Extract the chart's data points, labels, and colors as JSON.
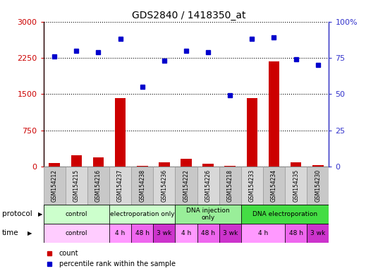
{
  "title": "GDS2840 / 1418350_at",
  "samples": [
    "GSM154212",
    "GSM154215",
    "GSM154216",
    "GSM154237",
    "GSM154238",
    "GSM154236",
    "GSM154222",
    "GSM154226",
    "GSM154218",
    "GSM154233",
    "GSM154234",
    "GSM154235",
    "GSM154230"
  ],
  "counts": [
    80,
    230,
    190,
    1420,
    20,
    90,
    160,
    55,
    15,
    1420,
    2180,
    85,
    35
  ],
  "percentile": [
    76,
    80,
    79,
    88,
    55,
    73,
    80,
    79,
    49,
    88,
    89,
    74,
    70
  ],
  "ylim_left": [
    0,
    3000
  ],
  "ylim_right": [
    0,
    100
  ],
  "yticks_left": [
    0,
    750,
    1500,
    2250,
    3000
  ],
  "yticks_right": [
    0,
    25,
    50,
    75,
    100
  ],
  "ytick_labels_left": [
    "0",
    "750",
    "1500",
    "2250",
    "3000"
  ],
  "ytick_labels_right": [
    "0",
    "25",
    "50",
    "75",
    "100%"
  ],
  "left_color": "#cc0000",
  "right_color": "#3333cc",
  "bar_color": "#cc0000",
  "dot_color": "#0000cc",
  "protocol_groups": [
    {
      "label": "control",
      "start": 0,
      "end": 3,
      "color": "#ccffcc"
    },
    {
      "label": "electroporation only",
      "start": 3,
      "end": 6,
      "color": "#ccffcc"
    },
    {
      "label": "DNA injection\nonly",
      "start": 6,
      "end": 9,
      "color": "#88ee88"
    },
    {
      "label": "DNA electroporation",
      "start": 9,
      "end": 13,
      "color": "#44dd44"
    }
  ],
  "time_groups": [
    {
      "label": "control",
      "start": 0,
      "end": 3
    },
    {
      "label": "4 h",
      "start": 3,
      "end": 4
    },
    {
      "label": "48 h",
      "start": 4,
      "end": 5
    },
    {
      "label": "3 wk",
      "start": 5,
      "end": 6
    },
    {
      "label": "4 h",
      "start": 6,
      "end": 7
    },
    {
      "label": "48 h",
      "start": 7,
      "end": 8
    },
    {
      "label": "3 wk",
      "start": 8,
      "end": 9
    },
    {
      "label": "4 h",
      "start": 9,
      "end": 11
    },
    {
      "label": "48 h",
      "start": 11,
      "end": 12
    },
    {
      "label": "3 wk",
      "start": 12,
      "end": 13
    }
  ],
  "time_colors": {
    "control": "#ffccff",
    "4 h": "#ff99ff",
    "48 h": "#ee66ee",
    "3 wk": "#cc33cc"
  }
}
